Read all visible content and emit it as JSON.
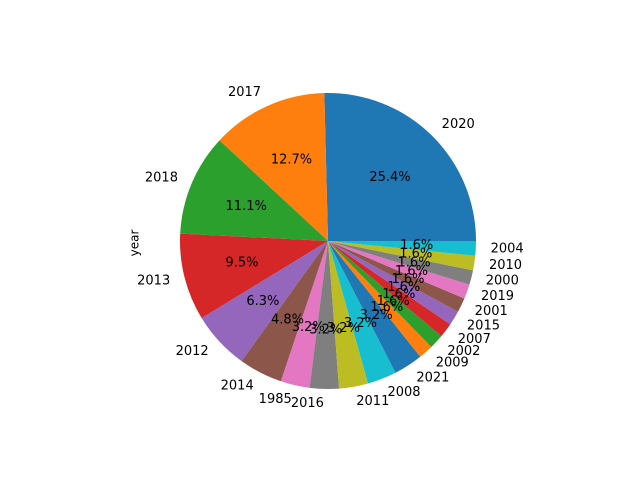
{
  "chart_data": {
    "type": "pie",
    "ylabel": "year",
    "categories": [
      "2020",
      "2017",
      "2018",
      "2013",
      "2012",
      "2014",
      "1985",
      "2016",
      "2011",
      "2008",
      "2021",
      "2009",
      "2002",
      "2007",
      "2015",
      "2001",
      "2019",
      "2000",
      "2010",
      "2004"
    ],
    "values": [
      16,
      8,
      7,
      6,
      4,
      3,
      2,
      2,
      2,
      2,
      2,
      1,
      1,
      1,
      1,
      1,
      1,
      1,
      1,
      1
    ],
    "percent_labels": [
      "25.4%",
      "12.7%",
      "11.1%",
      "9.5%",
      "6.3%",
      "4.8%",
      "3.2%",
      "3.2%",
      "3.2%",
      "3.2%",
      "3.2%",
      "1.6%",
      "1.6%",
      "1.6%",
      "1.6%",
      "1.6%",
      "1.6%",
      "1.6%",
      "1.6%",
      "1.6%"
    ],
    "colors": [
      "#1f77b4",
      "#ff7f0e",
      "#2ca02c",
      "#d62728",
      "#9467bd",
      "#8c564b",
      "#e377c2",
      "#7f7f7f",
      "#bcbd22",
      "#17becf"
    ],
    "start_angle_deg": 0,
    "direction": "counterclockwise"
  }
}
